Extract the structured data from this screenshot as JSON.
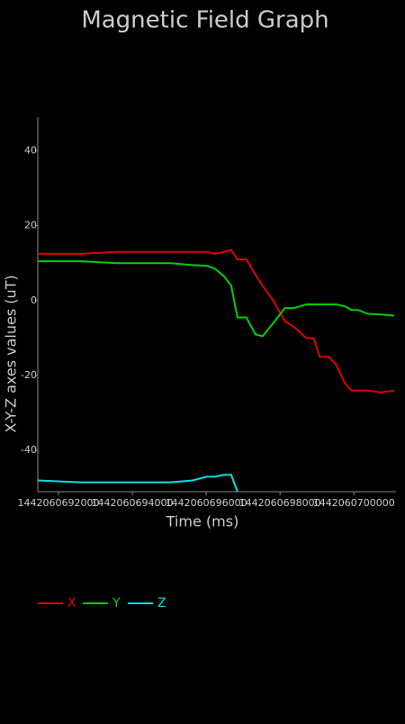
{
  "chart_data": {
    "type": "line",
    "title": "Magnetic Field Graph",
    "x_label": "Time (ms)",
    "y_label": "X-Y-Z axes values (uT)",
    "x": [
      1442060691440,
      1442060692604,
      1442060693573,
      1442060695028,
      1442060695634,
      1442060696011,
      1442060696240,
      1442060696483,
      1442060696677,
      1442060696847,
      1442060697089,
      1442060697332,
      1442060697526,
      1442060697817,
      1442060698132,
      1442060698374,
      1442060698713,
      1442060698907,
      1442060699076,
      1442060699319,
      1442060699513,
      1442060699755,
      1442060699925,
      1442060700119,
      1442060700361,
      1442060700725,
      1442060701088
    ],
    "series": [
      {
        "name": "X",
        "color": "#e00000",
        "values": [
          12.5,
          12.5,
          13,
          13,
          13,
          13,
          12.5,
          13,
          13.5,
          11,
          11,
          7,
          4,
          0,
          -5.5,
          -7,
          -10,
          -10,
          -15,
          -15,
          -17,
          -22,
          -24,
          -24,
          -24,
          -24.5,
          -24
        ]
      },
      {
        "name": "Y",
        "color": "#00d000",
        "values": [
          10.5,
          10.5,
          10,
          10,
          9.5,
          9.3,
          8.5,
          6.5,
          4,
          -4.5,
          -4.5,
          -9,
          -9.5,
          -6,
          -2,
          -2,
          -1,
          -1,
          -1,
          -1,
          -1,
          -1.5,
          -2.5,
          -2.5,
          -3.5,
          -3.7,
          -4
        ]
      },
      {
        "name": "Z",
        "color": "#00e0e0",
        "values": [
          -48,
          -48.5,
          -48.5,
          -48.5,
          -48,
          -47,
          -47,
          -46.5,
          -46.5,
          -51,
          null,
          null,
          null,
          null,
          null,
          null,
          null,
          null,
          null,
          null,
          null,
          null,
          null,
          null,
          null,
          null,
          null
        ]
      }
    ],
    "xlim": [
      1442060691440,
      1442060701140
    ],
    "xticks": [
      1442060692000,
      1442060694000,
      1442060696000,
      1442060698000,
      1442060700000
    ],
    "ylim": [
      -51,
      49
    ],
    "yticks": [
      40,
      20,
      0,
      -20,
      -40
    ]
  }
}
